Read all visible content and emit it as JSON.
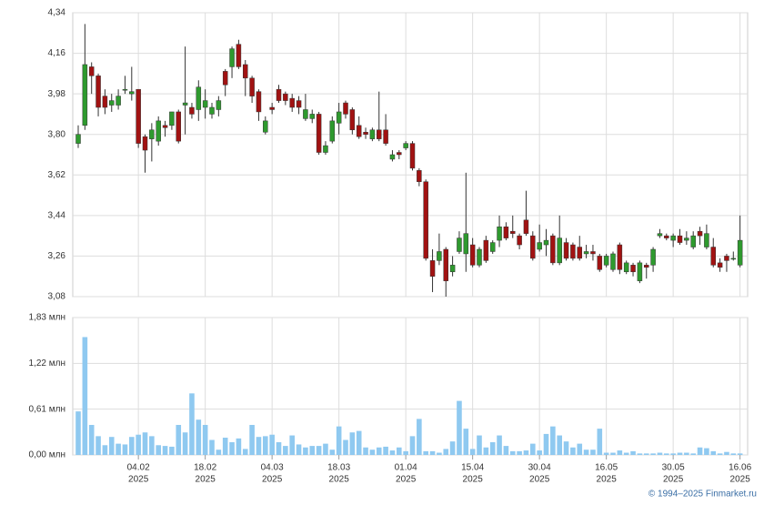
{
  "chart_data": {
    "type": "candlestick",
    "categories": [
      null,
      null,
      null,
      null,
      null,
      null,
      null,
      null,
      null,
      "04.02",
      null,
      null,
      null,
      null,
      null,
      null,
      null,
      null,
      null,
      "18.02",
      null,
      null,
      null,
      null,
      null,
      null,
      null,
      null,
      null,
      "04.03",
      null,
      null,
      null,
      null,
      null,
      null,
      null,
      null,
      null,
      "18.03",
      null,
      null,
      null,
      null,
      null,
      null,
      null,
      null,
      null,
      "01.04",
      null,
      null,
      null,
      null,
      null,
      null,
      null,
      null,
      null,
      "15.04",
      null,
      null,
      null,
      null,
      null,
      null,
      null,
      null,
      null,
      "30.04",
      null,
      null,
      null,
      null,
      null,
      null,
      null,
      null,
      null,
      "16.05",
      null,
      null,
      null,
      null,
      null,
      null,
      null,
      null,
      null,
      "30.05",
      null,
      null,
      null,
      null,
      null,
      null,
      null,
      null,
      null,
      "16.06"
    ],
    "year_label": "2025",
    "open": [
      3.76,
      3.84,
      4.1,
      4.06,
      3.97,
      3.93,
      3.93,
      4.0,
      3.98,
      4.0,
      3.79,
      3.78,
      3.77,
      3.84,
      3.84,
      3.9,
      3.93,
      3.92,
      3.91,
      3.92,
      3.89,
      3.91,
      4.08,
      4.1,
      4.2,
      4.11,
      4.05,
      3.99,
      3.81,
      3.92,
      4.0,
      3.98,
      3.96,
      3.95,
      3.87,
      3.87,
      3.89,
      3.72,
      3.77,
      3.85,
      3.94,
      3.91,
      3.84,
      3.81,
      3.78,
      3.82,
      3.82,
      3.69,
      3.72,
      3.74,
      3.76,
      3.64,
      3.59,
      3.24,
      3.24,
      3.29,
      3.19,
      3.28,
      3.27,
      3.31,
      3.22,
      3.33,
      3.28,
      3.33,
      3.39,
      3.37,
      3.35,
      3.42,
      3.35,
      3.29,
      3.31,
      3.35,
      3.23,
      3.32,
      3.31,
      3.3,
      3.27,
      3.28,
      3.26,
      3.22,
      3.2,
      3.31,
      3.19,
      3.22,
      3.15,
      3.22,
      3.22,
      3.35,
      3.35,
      3.33,
      3.35,
      3.33,
      3.3,
      3.37,
      3.3,
      3.3,
      3.23,
      3.26,
      3.25,
      3.22
    ],
    "high": [
      3.84,
      4.29,
      4.12,
      4.07,
      4.0,
      3.98,
      4.0,
      4.06,
      4.1,
      4.0,
      3.8,
      3.85,
      3.88,
      3.86,
      3.9,
      3.91,
      4.19,
      3.94,
      4.04,
      4.0,
      3.94,
      3.97,
      4.09,
      4.19,
      4.22,
      4.13,
      4.06,
      4.0,
      3.88,
      3.94,
      4.02,
      3.99,
      3.98,
      3.97,
      3.98,
      3.91,
      3.9,
      3.77,
      3.88,
      3.94,
      3.95,
      3.92,
      3.88,
      3.83,
      3.83,
      3.99,
      3.89,
      3.73,
      3.73,
      3.77,
      3.77,
      3.65,
      3.6,
      3.29,
      3.36,
      3.3,
      3.26,
      3.37,
      3.63,
      3.34,
      3.3,
      3.35,
      3.33,
      3.44,
      3.41,
      3.44,
      3.36,
      3.55,
      3.37,
      3.4,
      3.38,
      3.36,
      3.44,
      3.34,
      3.32,
      3.35,
      3.31,
      3.31,
      3.27,
      3.27,
      3.28,
      3.32,
      3.24,
      3.23,
      3.24,
      3.23,
      3.3,
      3.38,
      3.36,
      3.36,
      3.38,
      3.37,
      3.37,
      3.39,
      3.4,
      3.34,
      3.25,
      3.27,
      3.28,
      3.44
    ],
    "low": [
      3.74,
      3.82,
      3.98,
      3.88,
      3.89,
      3.9,
      3.91,
      3.98,
      3.95,
      3.74,
      3.63,
      3.68,
      3.75,
      3.79,
      3.82,
      3.76,
      3.8,
      3.87,
      3.86,
      3.87,
      3.87,
      3.88,
      3.97,
      4.05,
      4.09,
      3.97,
      3.94,
      3.86,
      3.8,
      3.89,
      3.94,
      3.93,
      3.9,
      3.89,
      3.86,
      3.85,
      3.71,
      3.71,
      3.76,
      3.8,
      3.87,
      3.8,
      3.78,
      3.78,
      3.77,
      3.77,
      3.75,
      3.68,
      3.69,
      3.73,
      3.64,
      3.57,
      3.24,
      3.1,
      3.22,
      3.08,
      3.17,
      3.27,
      3.19,
      3.21,
      3.21,
      3.23,
      3.27,
      3.3,
      3.33,
      3.34,
      3.29,
      3.35,
      3.24,
      3.28,
      3.26,
      3.22,
      3.22,
      3.24,
      3.24,
      3.24,
      3.25,
      3.24,
      3.19,
      3.21,
      3.19,
      3.18,
      3.18,
      3.17,
      3.14,
      3.16,
      3.19,
      3.34,
      3.33,
      3.3,
      3.31,
      3.31,
      3.29,
      3.31,
      3.29,
      3.21,
      3.19,
      3.19,
      3.24,
      3.21
    ],
    "close": [
      3.8,
      4.11,
      4.06,
      3.92,
      3.92,
      3.95,
      3.97,
      4.0,
      3.99,
      3.76,
      3.73,
      3.82,
      3.86,
      3.83,
      3.9,
      3.77,
      3.94,
      3.89,
      4.01,
      3.95,
      3.92,
      3.95,
      4.02,
      4.18,
      4.1,
      4.05,
      3.97,
      3.9,
      3.86,
      3.91,
      3.95,
      3.95,
      3.92,
      3.92,
      3.91,
      3.89,
      3.72,
      3.75,
      3.86,
      3.9,
      3.89,
      3.82,
      3.79,
      3.8,
      3.82,
      3.78,
      3.76,
      3.71,
      3.71,
      3.76,
      3.65,
      3.59,
      3.25,
      3.17,
      3.28,
      3.15,
      3.22,
      3.34,
      3.36,
      3.22,
      3.29,
      3.24,
      3.32,
      3.39,
      3.34,
      3.36,
      3.31,
      3.36,
      3.25,
      3.32,
      3.33,
      3.23,
      3.34,
      3.25,
      3.25,
      3.25,
      3.28,
      3.27,
      3.2,
      3.26,
      3.27,
      3.2,
      3.23,
      3.19,
      3.23,
      3.21,
      3.29,
      3.36,
      3.34,
      3.35,
      3.32,
      3.34,
      3.35,
      3.35,
      3.36,
      3.22,
      3.21,
      3.24,
      3.25,
      3.33
    ],
    "up_color": "#2e9a2e",
    "down_color": "#a11212",
    "ylim": [
      3.08,
      4.34
    ],
    "yticks": [
      {
        "value": 3.08,
        "label": "3,08"
      },
      {
        "value": 3.26,
        "label": "3,26"
      },
      {
        "value": 3.44,
        "label": "3,44"
      },
      {
        "value": 3.62,
        "label": "3,62"
      },
      {
        "value": 3.8,
        "label": "3,80"
      },
      {
        "value": 3.98,
        "label": "3,98"
      },
      {
        "value": 4.16,
        "label": "4,16"
      },
      {
        "value": 4.34,
        "label": "4,34"
      }
    ],
    "volume": {
      "color": "#8fc9f0",
      "values": [
        0.58,
        1.57,
        0.4,
        0.25,
        0.13,
        0.24,
        0.15,
        0.14,
        0.24,
        0.27,
        0.3,
        0.25,
        0.13,
        0.12,
        0.11,
        0.4,
        0.3,
        0.82,
        0.47,
        0.4,
        0.2,
        0.07,
        0.23,
        0.17,
        0.22,
        0.08,
        0.4,
        0.24,
        0.25,
        0.27,
        0.17,
        0.12,
        0.26,
        0.14,
        0.1,
        0.12,
        0.12,
        0.15,
        0.07,
        0.38,
        0.2,
        0.3,
        0.32,
        0.1,
        0.07,
        0.1,
        0.11,
        0.06,
        0.1,
        0.05,
        0.25,
        0.48,
        0.05,
        0.05,
        0.03,
        0.08,
        0.18,
        0.72,
        0.35,
        0.08,
        0.26,
        0.1,
        0.17,
        0.26,
        0.12,
        0.05,
        0.05,
        0.06,
        0.15,
        0.06,
        0.28,
        0.38,
        0.26,
        0.18,
        0.1,
        0.15,
        0.07,
        0.07,
        0.35,
        0.03,
        0.03,
        0.06,
        0.03,
        0.05,
        0.02,
        0.02,
        0.02,
        0.03,
        0.02,
        0.02,
        0.03,
        0.03,
        0.02,
        0.1,
        0.09,
        0.05,
        0.02,
        0.04,
        0.02,
        0.02
      ],
      "ylim": [
        0,
        1.83
      ],
      "yticks": [
        {
          "value": 0,
          "label": "0,00 млн"
        },
        {
          "value": 0.61,
          "label": "0,61 млн"
        },
        {
          "value": 1.22,
          "label": "1,22 млн"
        },
        {
          "value": 1.83,
          "label": "1,83 млн"
        }
      ]
    },
    "credit": "© 1994–2025 Finmarket.ru"
  }
}
